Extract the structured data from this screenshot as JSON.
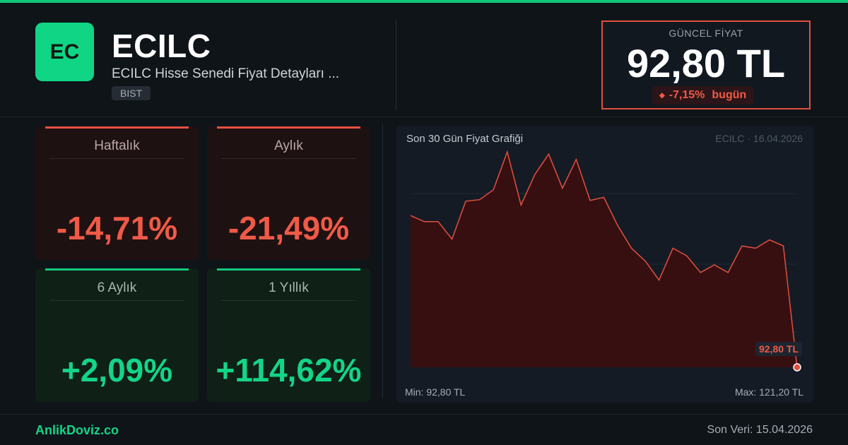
{
  "header": {
    "logo_text": "EC",
    "ticker": "ECILC",
    "subtitle": "ECILC Hisse Senedi Fiyat Detayları ...",
    "exchange": "BIST"
  },
  "price": {
    "label": "GÜNCEL FİYAT",
    "value": "92,80 TL",
    "change": "-7,15%",
    "change_suffix": "bugün",
    "change_icon": "down-dot-icon"
  },
  "performance": [
    {
      "label": "Haftalık",
      "value": "-14,71%",
      "trend": "negative"
    },
    {
      "label": "Aylık",
      "value": "-21,49%",
      "trend": "negative"
    },
    {
      "label": "6 Aylık",
      "value": "+2,09%",
      "trend": "positive"
    },
    {
      "label": "1 Yıllık",
      "value": "+114,62%",
      "trend": "positive"
    }
  ],
  "chart": {
    "title": "Son 30 Gün Fiyat Grafiği",
    "meta": "ECILC · 16.04.2026",
    "last_label": "92,80 TL",
    "min_text": "Min: 92,80 TL",
    "max_text": "Max: 121,20 TL"
  },
  "chart_data": {
    "type": "area",
    "title": "Son 30 Gün Fiyat Grafiği",
    "y_min": 92.8,
    "y_max": 121.2,
    "values": [
      112.8,
      112.0,
      112.0,
      109.7,
      114.7,
      114.9,
      116.2,
      121.2,
      114.2,
      118.2,
      120.9,
      116.4,
      120.2,
      114.8,
      115.2,
      111.5,
      108.5,
      106.8,
      104.3,
      108.5,
      107.5,
      105.3,
      106.3,
      105.3,
      108.8,
      108.5,
      109.6,
      108.8,
      92.8
    ],
    "color_line": "#e0503f",
    "color_fill": "#3a0f11",
    "grid": true
  },
  "footer": {
    "brand": "AnlikDoviz.co",
    "last_data": "Son Veri: 15.04.2026"
  },
  "colors": {
    "accent_green": "#10d585",
    "negative": "#ef5a47",
    "positive": "#14d488"
  }
}
